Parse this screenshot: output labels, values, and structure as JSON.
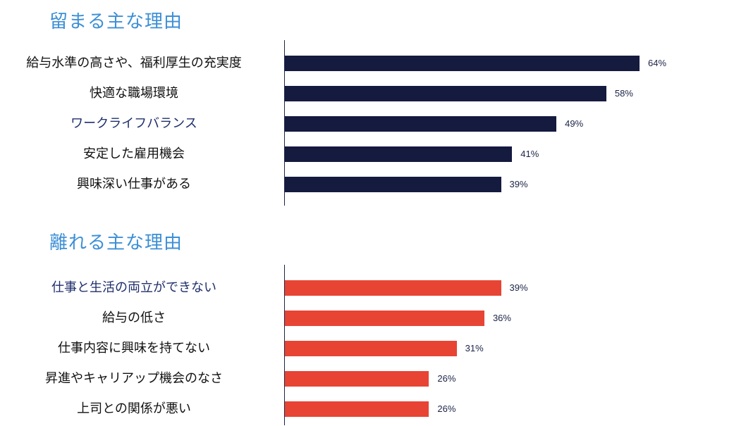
{
  "titles": {
    "stay": "留まる主な理由",
    "leave": "離れる主な理由"
  },
  "colors": {
    "title": "#3d8fd6",
    "stay_bar": "#151a3f",
    "leave_bar": "#e84434",
    "label_dark": "#111111",
    "label_navy": "#1e2f6b"
  },
  "chart_data": [
    {
      "type": "bar",
      "orientation": "horizontal",
      "title": "留まる主な理由",
      "categories": [
        "給与水準の高さや、福利厚生の充実度",
        "快適な職場環境",
        "ワークライフバランス",
        "安定した雇用機会",
        "興味深い仕事がある"
      ],
      "values": [
        64,
        58,
        49,
        41,
        39
      ],
      "value_labels": [
        "64%",
        "58%",
        "49%",
        "41%",
        "39%"
      ],
      "unit": "%",
      "xlim": [
        0,
        100
      ],
      "grid": false,
      "legend": "none"
    },
    {
      "type": "bar",
      "orientation": "horizontal",
      "title": "離れる主な理由",
      "categories": [
        "仕事と生活の両立ができない",
        "給与の低さ",
        "仕事内容に興味を持てない",
        "昇進やキャリアップ機会のなさ",
        "上司との関係が悪い"
      ],
      "values": [
        39,
        36,
        31,
        26,
        26
      ],
      "value_labels": [
        "39%",
        "36%",
        "31%",
        "26%",
        "26%"
      ],
      "unit": "%",
      "xlim": [
        0,
        100
      ],
      "grid": false,
      "legend": "none"
    }
  ]
}
